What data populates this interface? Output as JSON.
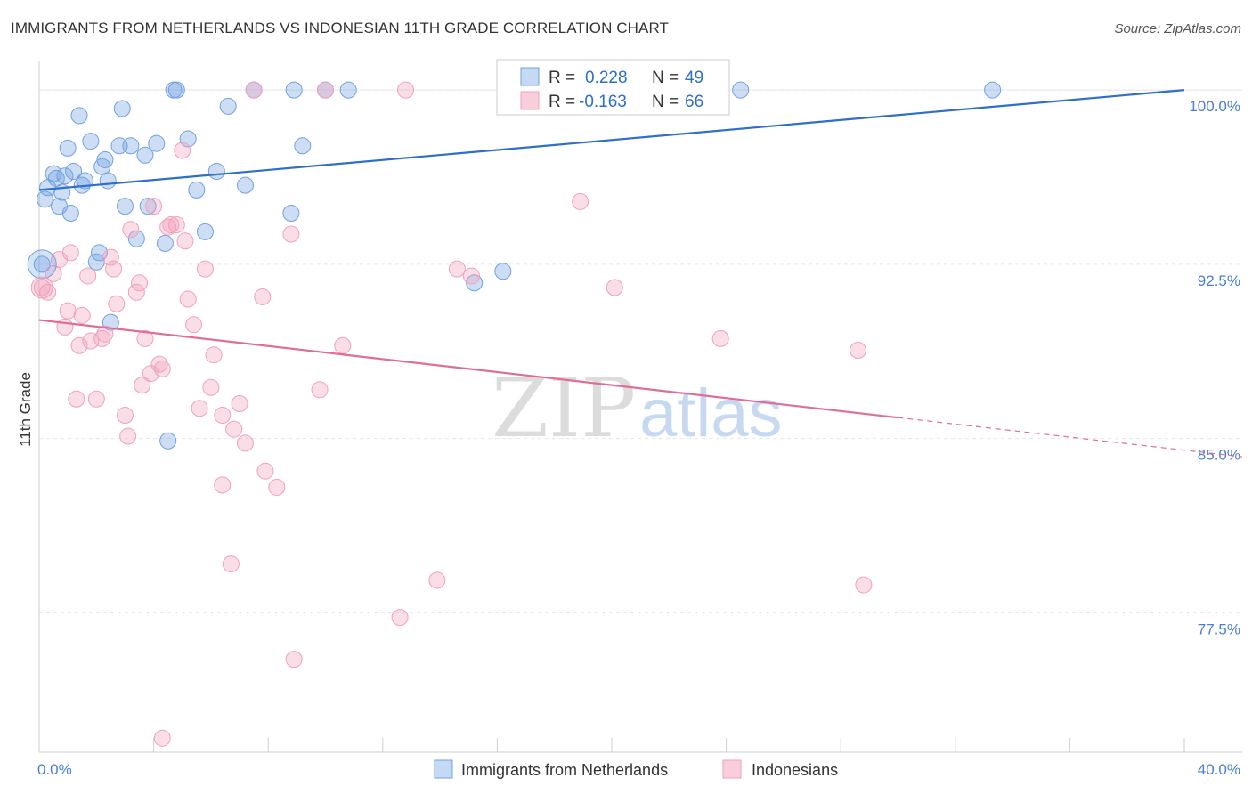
{
  "title": "IMMIGRANTS FROM NETHERLANDS VS INDONESIAN 11TH GRADE CORRELATION CHART",
  "source": "Source: ZipAtlas.com",
  "watermark": {
    "zip": "ZIP",
    "atlas": "atlas"
  },
  "chart_data": {
    "type": "scatter",
    "ylabel": "11th Grade",
    "xlim": [
      0,
      40
    ],
    "ylim": [
      71.5,
      101.5
    ],
    "x_tick_labels": [
      "0.0%",
      "40.0%"
    ],
    "y_ticks": [
      {
        "value": 100,
        "label": "100.0%"
      },
      {
        "value": 92.5,
        "label": "92.5%"
      },
      {
        "value": 85,
        "label": "85.0%"
      },
      {
        "value": 77.5,
        "label": "77.5%"
      }
    ],
    "grid": true,
    "legend_position": "top-center",
    "series": [
      {
        "name": "Immigrants from Netherlands",
        "color": "#6fa1e0",
        "line_color": "#2e6fc7",
        "R": "0.228",
        "N": "49",
        "trend": {
          "x0": 0,
          "y0": 95.7,
          "x1": 40,
          "y1": 100.0,
          "solid_to": 40
        },
        "points": [
          [
            0.2,
            95.3
          ],
          [
            0.3,
            95.8
          ],
          [
            0.5,
            96.4
          ],
          [
            0.6,
            96.2
          ],
          [
            0.7,
            95.0
          ],
          [
            0.8,
            95.6
          ],
          [
            0.9,
            96.3
          ],
          [
            1.0,
            97.5
          ],
          [
            1.1,
            94.7
          ],
          [
            1.2,
            96.5
          ],
          [
            1.4,
            98.9
          ],
          [
            1.5,
            95.9
          ],
          [
            1.6,
            96.1
          ],
          [
            1.8,
            97.8
          ],
          [
            2.0,
            92.6
          ],
          [
            2.1,
            93.0
          ],
          [
            2.2,
            96.7
          ],
          [
            2.3,
            97.0
          ],
          [
            2.4,
            96.1
          ],
          [
            2.5,
            90.0
          ],
          [
            2.8,
            97.6
          ],
          [
            2.9,
            99.2
          ],
          [
            3.0,
            95.0
          ],
          [
            3.2,
            97.6
          ],
          [
            3.4,
            93.6
          ],
          [
            3.7,
            97.2
          ],
          [
            3.8,
            95.0
          ],
          [
            4.1,
            97.7
          ],
          [
            4.4,
            93.4
          ],
          [
            4.5,
            84.9
          ],
          [
            4.7,
            100.0
          ],
          [
            4.8,
            100.0
          ],
          [
            5.2,
            97.9
          ],
          [
            5.5,
            95.7
          ],
          [
            5.8,
            93.9
          ],
          [
            6.2,
            96.5
          ],
          [
            6.6,
            99.3
          ],
          [
            7.2,
            95.9
          ],
          [
            7.5,
            100.0
          ],
          [
            8.8,
            94.7
          ],
          [
            8.9,
            100.0
          ],
          [
            9.2,
            97.6
          ],
          [
            10.0,
            100.0
          ],
          [
            10.8,
            100.0
          ],
          [
            15.2,
            91.7
          ],
          [
            16.2,
            92.2
          ],
          [
            24.5,
            100.0
          ],
          [
            33.3,
            100.0
          ],
          [
            0.1,
            92.5
          ]
        ]
      },
      {
        "name": "Indonesians",
        "color": "#f0a0bb",
        "line_color": "#e06d98",
        "R": "-0.163",
        "N": "66",
        "trend": {
          "x0": 0,
          "y0": 90.1,
          "x1": 40,
          "y1": 84.5,
          "solid_to": 30.0
        },
        "points": [
          [
            0.1,
            91.5
          ],
          [
            0.3,
            91.3
          ],
          [
            0.5,
            92.1
          ],
          [
            0.7,
            92.7
          ],
          [
            0.9,
            89.8
          ],
          [
            1.0,
            90.5
          ],
          [
            1.1,
            93.0
          ],
          [
            1.3,
            86.7
          ],
          [
            1.4,
            89.0
          ],
          [
            1.5,
            90.3
          ],
          [
            1.7,
            92.0
          ],
          [
            1.8,
            89.2
          ],
          [
            2.0,
            86.7
          ],
          [
            2.2,
            89.3
          ],
          [
            2.3,
            89.5
          ],
          [
            2.5,
            92.8
          ],
          [
            2.6,
            92.3
          ],
          [
            2.7,
            90.8
          ],
          [
            3.0,
            86.0
          ],
          [
            3.1,
            85.1
          ],
          [
            3.2,
            94.0
          ],
          [
            3.4,
            91.3
          ],
          [
            3.5,
            91.7
          ],
          [
            3.6,
            87.3
          ],
          [
            3.7,
            89.3
          ],
          [
            3.9,
            87.8
          ],
          [
            4.0,
            95.0
          ],
          [
            4.2,
            88.2
          ],
          [
            4.3,
            88.0
          ],
          [
            4.5,
            94.1
          ],
          [
            4.6,
            94.2
          ],
          [
            4.8,
            94.2
          ],
          [
            5.0,
            97.4
          ],
          [
            5.1,
            93.5
          ],
          [
            5.2,
            91.0
          ],
          [
            5.4,
            89.9
          ],
          [
            5.6,
            86.3
          ],
          [
            5.8,
            92.3
          ],
          [
            6.0,
            87.2
          ],
          [
            6.1,
            88.6
          ],
          [
            6.4,
            83.0
          ],
          [
            6.4,
            86.0
          ],
          [
            6.7,
            79.6
          ],
          [
            6.8,
            85.4
          ],
          [
            7.0,
            86.5
          ],
          [
            7.2,
            84.8
          ],
          [
            7.5,
            100.0
          ],
          [
            7.8,
            91.1
          ],
          [
            7.9,
            83.6
          ],
          [
            8.3,
            82.9
          ],
          [
            8.8,
            93.8
          ],
          [
            8.9,
            75.5
          ],
          [
            9.8,
            87.1
          ],
          [
            10.0,
            100.0
          ],
          [
            10.6,
            89.0
          ],
          [
            12.6,
            77.3
          ],
          [
            12.8,
            100.0
          ],
          [
            13.9,
            78.9
          ],
          [
            14.6,
            92.3
          ],
          [
            15.1,
            92.0
          ],
          [
            18.9,
            95.2
          ],
          [
            20.1,
            91.5
          ],
          [
            23.8,
            89.3
          ],
          [
            28.6,
            88.8
          ],
          [
            28.8,
            78.7
          ],
          [
            4.3,
            72.1
          ]
        ]
      }
    ]
  }
}
